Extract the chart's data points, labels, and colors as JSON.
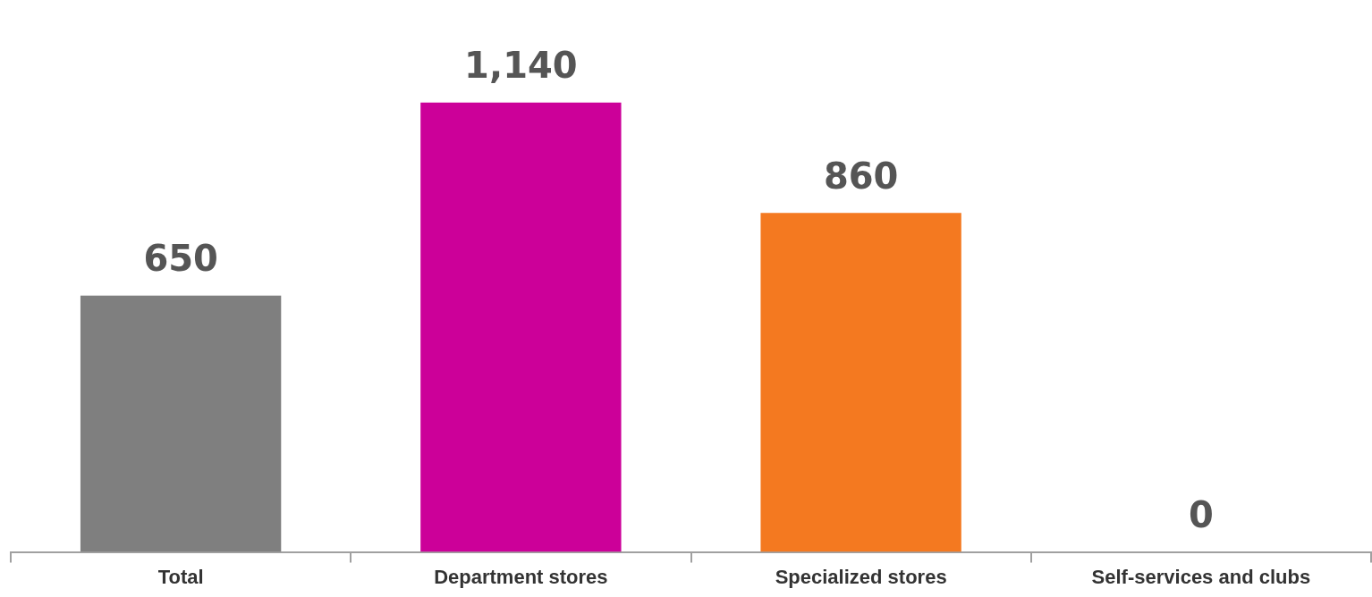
{
  "chart_data": {
    "type": "bar",
    "categories": [
      "Total",
      "Department stores",
      "Specialized stores",
      "Self-services and clubs"
    ],
    "values": [
      650,
      1140,
      860,
      0
    ],
    "colors": [
      "#7f7f7f",
      "#cc0099",
      "#f47920",
      "#f47920"
    ],
    "value_labels": [
      "650",
      "1,140",
      "860",
      "0"
    ],
    "grid": false,
    "legend": false,
    "tick_labels": "x"
  }
}
